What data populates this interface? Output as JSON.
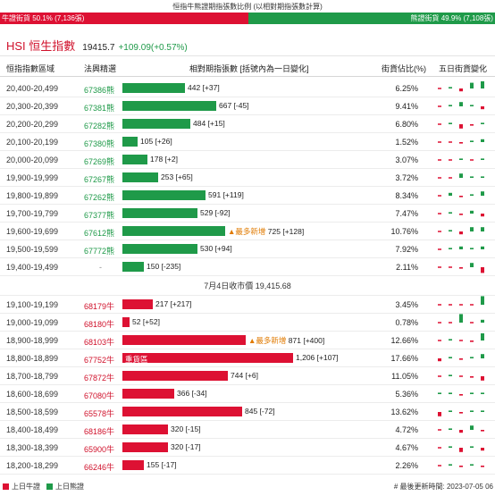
{
  "title": "恒指牛熊證期指張數比例 (以相對期指張數計算)",
  "ratio": {
    "bull_label": "牛證街貨 50.1% (7,136張)",
    "bear_label": "熊證街貨 49.9% (7,108張)",
    "bull_pct": 50.1,
    "bear_pct": 49.9
  },
  "index": {
    "name": "HSI 恒生指數",
    "value": "19415.7",
    "change": "+109.09(+0.57%)"
  },
  "table_header": {
    "range": "恒指指數區域",
    "code": "法興精選",
    "contracts": "相對期指張數 [括號內為一日變化]",
    "pct": "街貨佔比(%)",
    "five_day": "五日街貨變化"
  },
  "bear_rows": [
    {
      "range": "20,400-20,499",
      "code": "67386熊",
      "value": "442",
      "change": "[+37]",
      "contracts": 442,
      "pct": "6.25%",
      "new": ""
    },
    {
      "range": "20,300-20,399",
      "code": "67381熊",
      "value": "667",
      "change": "[-45]",
      "contracts": 667,
      "pct": "9.41%",
      "new": ""
    },
    {
      "range": "20,200-20,299",
      "code": "67282熊",
      "value": "484",
      "change": "[+15]",
      "contracts": 484,
      "pct": "6.80%",
      "new": ""
    },
    {
      "range": "20,100-20,199",
      "code": "67380熊",
      "value": "105",
      "change": "[+26]",
      "contracts": 105,
      "pct": "1.52%",
      "new": ""
    },
    {
      "range": "20,000-20,099",
      "code": "67269熊",
      "value": "178",
      "change": "[+2]",
      "contracts": 178,
      "pct": "3.07%",
      "new": ""
    },
    {
      "range": "19,900-19,999",
      "code": "67267熊",
      "value": "253",
      "change": "[+65]",
      "contracts": 253,
      "pct": "3.72%",
      "new": ""
    },
    {
      "range": "19,800-19,899",
      "code": "67262熊",
      "value": "591",
      "change": "[+119]",
      "contracts": 591,
      "pct": "8.34%",
      "new": ""
    },
    {
      "range": "19,700-19,799",
      "code": "67377熊",
      "value": "529",
      "change": "[-92]",
      "contracts": 529,
      "pct": "7.47%",
      "new": ""
    },
    {
      "range": "19,600-19,699",
      "code": "67612熊",
      "value": "725",
      "change": "[+128]",
      "contracts": 725,
      "pct": "10.76%",
      "new": "▲最多新增"
    },
    {
      "range": "19,500-19,599",
      "code": "67772熊",
      "value": "530",
      "change": "[+94]",
      "contracts": 530,
      "pct": "7.92%",
      "new": ""
    },
    {
      "range": "19,400-19,499",
      "code": "-",
      "value": "150",
      "change": "[-235]",
      "contracts": 150,
      "pct": "2.11%",
      "new": ""
    }
  ],
  "close_label": "7月4日收市價 19,415.68",
  "bull_rows": [
    {
      "range": "19,100-19,199",
      "code": "68179牛",
      "value": "217",
      "change": "[+217]",
      "contracts": 217,
      "pct": "3.45%",
      "new": "",
      "heavy": ""
    },
    {
      "range": "19,000-19,099",
      "code": "68180牛",
      "value": "52",
      "change": "[+52]",
      "contracts": 52,
      "pct": "0.78%",
      "new": "",
      "heavy": ""
    },
    {
      "range": "18,900-18,999",
      "code": "68103牛",
      "value": "871",
      "change": "[+400]",
      "contracts": 871,
      "pct": "12.66%",
      "new": "▲最多新增",
      "heavy": ""
    },
    {
      "range": "18,800-18,899",
      "code": "67752牛",
      "value": "1,206",
      "change": "[+107]",
      "contracts": 1206,
      "pct": "17.66%",
      "new": "",
      "heavy": "重貨區"
    },
    {
      "range": "18,700-18,799",
      "code": "67872牛",
      "value": "744",
      "change": "[+6]",
      "contracts": 744,
      "pct": "11.05%",
      "new": "",
      "heavy": ""
    },
    {
      "range": "18,600-18,699",
      "code": "67080牛",
      "value": "366",
      "change": "[-34]",
      "contracts": 366,
      "pct": "5.36%",
      "new": "",
      "heavy": ""
    },
    {
      "range": "18,500-18,599",
      "code": "65578牛",
      "value": "845",
      "change": "[-72]",
      "contracts": 845,
      "pct": "13.62%",
      "new": "",
      "heavy": ""
    },
    {
      "range": "18,400-18,499",
      "code": "68186牛",
      "value": "320",
      "change": "[-15]",
      "contracts": 320,
      "pct": "4.72%",
      "new": "",
      "heavy": ""
    },
    {
      "range": "18,300-18,399",
      "code": "65900牛",
      "value": "320",
      "change": "[-17]",
      "contracts": 320,
      "pct": "4.67%",
      "new": "",
      "heavy": ""
    },
    {
      "range": "18,200-18,299",
      "code": "66246牛",
      "value": "155",
      "change": "[-17]",
      "contracts": 155,
      "pct": "2.26%",
      "new": "",
      "heavy": ""
    }
  ],
  "mini_bars": {
    "bear": [
      [
        0,
        1,
        -2,
        4,
        5
      ],
      [
        0,
        1,
        3,
        1,
        -2
      ],
      [
        0,
        1,
        -3,
        -1,
        1
      ],
      [
        0,
        0,
        -1,
        1,
        2
      ],
      [
        0,
        0,
        1,
        0,
        1
      ],
      [
        0,
        0,
        3,
        1,
        1
      ],
      [
        0,
        2,
        -1,
        1,
        3
      ],
      [
        0,
        1,
        -1,
        2,
        -2
      ],
      [
        0,
        1,
        -2,
        3,
        3
      ],
      [
        0,
        1,
        2,
        1,
        2
      ],
      [
        0,
        0,
        -1,
        3,
        -4
      ]
    ],
    "bull": [
      [
        0,
        0,
        0,
        0,
        6
      ],
      [
        0,
        0,
        6,
        0,
        2
      ],
      [
        0,
        1,
        0,
        -1,
        5
      ],
      [
        -2,
        1,
        -1,
        1,
        3
      ],
      [
        0,
        1,
        0,
        -1,
        -3
      ],
      [
        1,
        1,
        -1,
        1,
        1
      ],
      [
        -3,
        1,
        -1,
        1,
        1
      ],
      [
        0,
        1,
        -2,
        3,
        -1
      ],
      [
        0,
        1,
        -3,
        1,
        -2
      ],
      [
        0,
        1,
        -1,
        1,
        -1
      ]
    ]
  },
  "footer": {
    "legend_bull": "上日牛證",
    "legend_bear": "上日熊證",
    "update_label": "# 最後更新時間: 2023-07-05 06"
  },
  "colors": {
    "bull": "#dd1133",
    "bear": "#1f9a49",
    "new_tag": "#e07a00"
  }
}
